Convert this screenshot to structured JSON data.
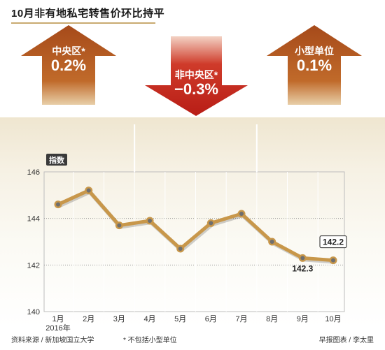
{
  "title": "10月非有地私宅转售价环比持平",
  "arrows": [
    {
      "name": "中央区*",
      "value": "0.2%",
      "direction": "up",
      "color": "#b5581f"
    },
    {
      "name": "非中央区*",
      "value": "−0.3%",
      "direction": "down",
      "color": "#c4221c"
    },
    {
      "name": "小型单位",
      "value": "0.1%",
      "direction": "up",
      "color": "#b5581f"
    }
  ],
  "chart_data": {
    "type": "line",
    "ylabel": "指数",
    "ylim": [
      140,
      146
    ],
    "yticks": [
      140,
      142,
      144,
      146
    ],
    "categories": [
      "1月",
      "2月",
      "3月",
      "4月",
      "5月",
      "6月",
      "7月",
      "8月",
      "9月",
      "10月"
    ],
    "year_label": "2016年",
    "series": [
      {
        "values": [
          144.6,
          145.2,
          143.7,
          143.9,
          142.7,
          143.8,
          144.2,
          143.0,
          142.3,
          142.2
        ]
      }
    ],
    "annotations": [
      {
        "category": "9月",
        "text": "142.3"
      },
      {
        "category": "10月",
        "text": "142.2"
      }
    ],
    "line_color": "#c8974a",
    "marker_color": "#6e6e6e"
  },
  "footer": {
    "source": "资料来源 / 新加坡国立大学",
    "note": "* 不包括小型单位",
    "credit": "早报图表 / 李太里"
  }
}
